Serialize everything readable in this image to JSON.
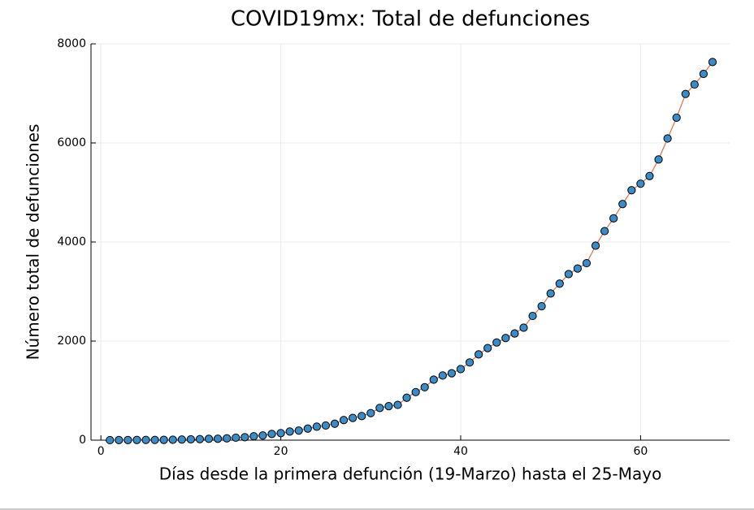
{
  "chart_data": {
    "type": "line",
    "title": "COVID19mx: Total de defunciones",
    "x_label": "Días desde la primera defunción (19-Marzo) hasta el 25-Mayo",
    "y_label": "Número total de defunciones",
    "x": [
      1,
      2,
      3,
      4,
      5,
      6,
      7,
      8,
      9,
      10,
      11,
      12,
      13,
      14,
      15,
      16,
      17,
      18,
      19,
      20,
      21,
      22,
      23,
      24,
      25,
      26,
      27,
      28,
      29,
      30,
      31,
      32,
      33,
      34,
      35,
      36,
      37,
      38,
      39,
      40,
      41,
      42,
      43,
      44,
      45,
      46,
      47,
      48,
      49,
      50,
      51,
      52,
      53,
      54,
      55,
      56,
      57,
      58,
      59,
      60,
      61,
      62,
      63,
      64,
      65,
      66,
      67,
      68
    ],
    "series": [
      {
        "color": "#e26f46",
        "marker_color": "#3a8cc8",
        "markers": true,
        "values": [
          1,
          2,
          2,
          4,
          5,
          5,
          6,
          8,
          12,
          16,
          20,
          28,
          29,
          37,
          50,
          60,
          79,
          94,
          125,
          141,
          174,
          194,
          233,
          273,
          296,
          332,
          406,
          449,
          486,
          546,
          650,
          686,
          712,
          857,
          970,
          1069,
          1221,
          1305,
          1351,
          1434,
          1569,
          1732,
          1859,
          1972,
          2061,
          2154,
          2271,
          2507,
          2704,
          2961,
          3160,
          3353,
          3465,
          3573,
          3926,
          4220,
          4477,
          4767,
          5045,
          5177,
          5332,
          5666,
          6090,
          6510,
          6989,
          7179,
          7394,
          7633
        ]
      }
    ],
    "xlim": [
      -1.1,
      69.9
    ],
    "xticks": [
      0,
      20,
      40,
      60
    ],
    "ylim": [
      0,
      8000
    ],
    "yticks": [
      0,
      2000,
      4000,
      6000,
      8000
    ],
    "grid": true
  }
}
